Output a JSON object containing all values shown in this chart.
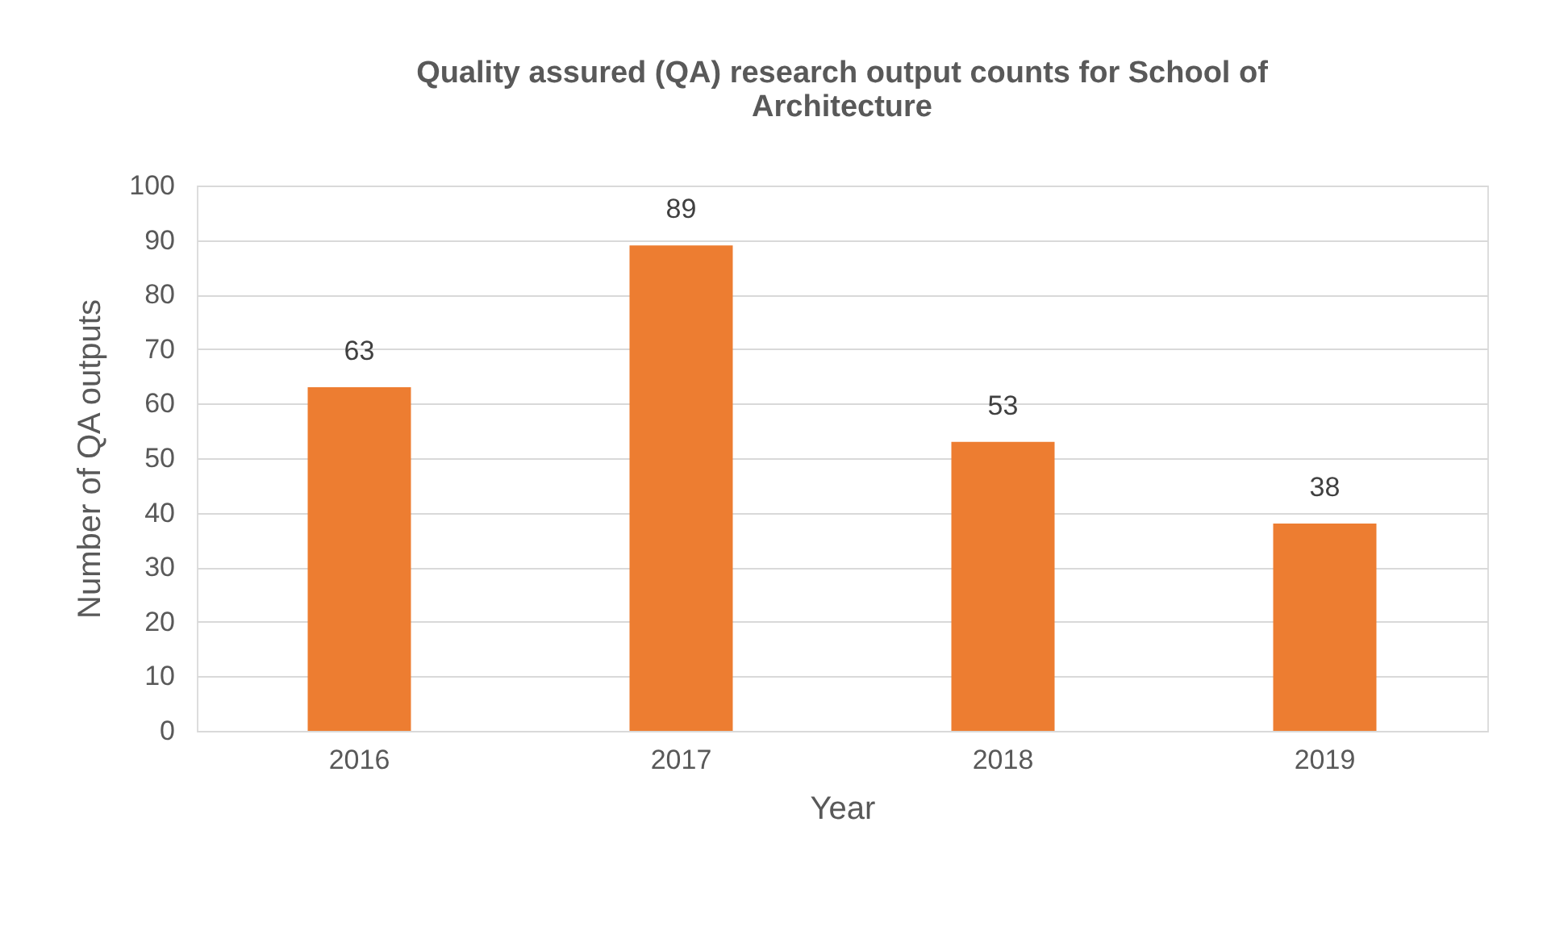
{
  "chart_data": {
    "type": "bar",
    "title": "Quality assured (QA) research output counts for School of Architecture",
    "xlabel": "Year",
    "ylabel": "Number of QA outputs",
    "categories": [
      "2016",
      "2017",
      "2018",
      "2019"
    ],
    "values": [
      63,
      89,
      53,
      38
    ],
    "color": "#ed7d31",
    "ylim": [
      0,
      100
    ],
    "yticks": [
      0,
      10,
      20,
      30,
      40,
      50,
      60,
      70,
      80,
      90,
      100
    ],
    "grid": "y",
    "data_labels": true
  }
}
